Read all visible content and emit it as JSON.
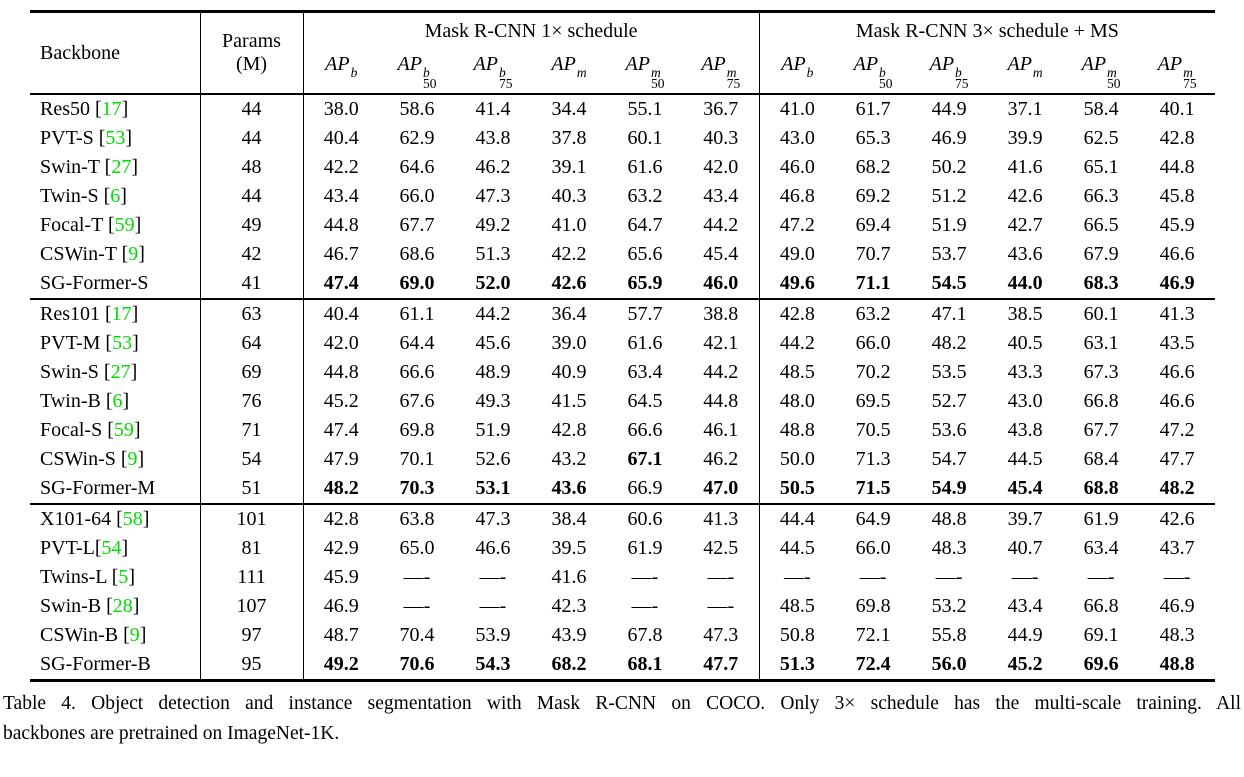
{
  "colors": {
    "citation": "#00dd00"
  },
  "table": {
    "columns": {
      "backbone": "Backbone",
      "params_line1": "Params",
      "params_line2": "(M)",
      "section1": "Mask R-CNN 1× schedule",
      "section2": "Mask R-CNN 3× schedule + MS"
    },
    "metric_headers": [
      {
        "base": "AP",
        "sup": "b",
        "sub": ""
      },
      {
        "base": "AP",
        "sup": "b",
        "sub": "50"
      },
      {
        "base": "AP",
        "sup": "b",
        "sub": "75"
      },
      {
        "base": "AP",
        "sup": "m",
        "sub": ""
      },
      {
        "base": "AP",
        "sup": "m",
        "sub": "50"
      },
      {
        "base": "AP",
        "sup": "m",
        "sub": "75"
      }
    ],
    "groups": [
      {
        "rows": [
          {
            "name": "Res50",
            "cite": "17",
            "cite_space": true,
            "params": "44",
            "values": [
              "38.0",
              "58.6",
              "41.4",
              "34.4",
              "55.1",
              "36.7",
              "41.0",
              "61.7",
              "44.9",
              "37.1",
              "58.4",
              "40.1"
            ],
            "bold": []
          },
          {
            "name": "PVT-S",
            "cite": "53",
            "cite_space": true,
            "params": "44",
            "values": [
              "40.4",
              "62.9",
              "43.8",
              "37.8",
              "60.1",
              "40.3",
              "43.0",
              "65.3",
              "46.9",
              "39.9",
              "62.5",
              "42.8"
            ],
            "bold": []
          },
          {
            "name": "Swin-T",
            "cite": "27",
            "cite_space": true,
            "params": "48",
            "values": [
              "42.2",
              "64.6",
              "46.2",
              "39.1",
              "61.6",
              "42.0",
              "46.0",
              "68.2",
              "50.2",
              "41.6",
              "65.1",
              "44.8"
            ],
            "bold": []
          },
          {
            "name": "Twin-S",
            "cite": "6",
            "cite_space": true,
            "params": "44",
            "values": [
              "43.4",
              "66.0",
              "47.3",
              "40.3",
              "63.2",
              "43.4",
              "46.8",
              "69.2",
              "51.2",
              "42.6",
              "66.3",
              "45.8"
            ],
            "bold": []
          },
          {
            "name": "Focal-T",
            "cite": "59",
            "cite_space": true,
            "params": "49",
            "values": [
              "44.8",
              "67.7",
              "49.2",
              "41.0",
              "64.7",
              "44.2",
              "47.2",
              "69.4",
              "51.9",
              "42.7",
              "66.5",
              "45.9"
            ],
            "bold": []
          },
          {
            "name": "CSWin-T",
            "cite": "9",
            "cite_space": true,
            "params": "42",
            "values": [
              "46.7",
              "68.6",
              "51.3",
              "42.2",
              "65.6",
              "45.4",
              "49.0",
              "70.7",
              "53.7",
              "43.6",
              "67.9",
              "46.6"
            ],
            "bold": []
          },
          {
            "name": "SG-Former-S",
            "cite": null,
            "cite_space": false,
            "params": "41",
            "values": [
              "47.4",
              "69.0",
              "52.0",
              "42.6",
              "65.9",
              "46.0",
              "49.6",
              "71.1",
              "54.5",
              "44.0",
              "68.3",
              "46.9"
            ],
            "bold": [
              0,
              1,
              2,
              3,
              4,
              5,
              6,
              7,
              8,
              9,
              10,
              11
            ]
          }
        ]
      },
      {
        "rows": [
          {
            "name": "Res101",
            "cite": "17",
            "cite_space": true,
            "params": "63",
            "values": [
              "40.4",
              "61.1",
              "44.2",
              "36.4",
              "57.7",
              "38.8",
              "42.8",
              "63.2",
              "47.1",
              "38.5",
              "60.1",
              "41.3"
            ],
            "bold": []
          },
          {
            "name": "PVT-M",
            "cite": "53",
            "cite_space": true,
            "params": "64",
            "values": [
              "42.0",
              "64.4",
              "45.6",
              "39.0",
              "61.6",
              "42.1",
              "44.2",
              "66.0",
              "48.2",
              "40.5",
              "63.1",
              "43.5"
            ],
            "bold": []
          },
          {
            "name": "Swin-S",
            "cite": "27",
            "cite_space": true,
            "params": "69",
            "values": [
              "44.8",
              "66.6",
              "48.9",
              "40.9",
              "63.4",
              "44.2",
              "48.5",
              "70.2",
              "53.5",
              "43.3",
              "67.3",
              "46.6"
            ],
            "bold": []
          },
          {
            "name": "Twin-B",
            "cite": "6",
            "cite_space": true,
            "params": "76",
            "values": [
              "45.2",
              "67.6",
              "49.3",
              "41.5",
              "64.5",
              "44.8",
              "48.0",
              "69.5",
              "52.7",
              "43.0",
              "66.8",
              "46.6"
            ],
            "bold": []
          },
          {
            "name": "Focal-S",
            "cite": "59",
            "cite_space": true,
            "params": "71",
            "values": [
              "47.4",
              "69.8",
              "51.9",
              "42.8",
              "66.6",
              "46.1",
              "48.8",
              "70.5",
              "53.6",
              "43.8",
              "67.7",
              "47.2"
            ],
            "bold": []
          },
          {
            "name": "CSWin-S",
            "cite": "9",
            "cite_space": true,
            "params": "54",
            "values": [
              "47.9",
              "70.1",
              "52.6",
              "43.2",
              "67.1",
              "46.2",
              "50.0",
              "71.3",
              "54.7",
              "44.5",
              "68.4",
              "47.7"
            ],
            "bold": [
              4
            ]
          },
          {
            "name": "SG-Former-M",
            "cite": null,
            "cite_space": false,
            "params": "51",
            "values": [
              "48.2",
              "70.3",
              "53.1",
              "43.6",
              "66.9",
              "47.0",
              "50.5",
              "71.5",
              "54.9",
              "45.4",
              "68.8",
              "48.2"
            ],
            "bold": [
              0,
              1,
              2,
              3,
              5,
              6,
              7,
              8,
              9,
              10,
              11
            ]
          }
        ]
      },
      {
        "rows": [
          {
            "name": "X101-64",
            "cite": "58",
            "cite_space": true,
            "params": "101",
            "values": [
              "42.8",
              "63.8",
              "47.3",
              "38.4",
              "60.6",
              "41.3",
              "44.4",
              "64.9",
              "48.8",
              "39.7",
              "61.9",
              "42.6"
            ],
            "bold": []
          },
          {
            "name": "PVT-L",
            "cite": "54",
            "cite_space": false,
            "params": "81",
            "values": [
              "42.9",
              "65.0",
              "46.6",
              "39.5",
              "61.9",
              "42.5",
              "44.5",
              "66.0",
              "48.3",
              "40.7",
              "63.4",
              "43.7"
            ],
            "bold": []
          },
          {
            "name": "Twins-L",
            "cite": "5",
            "cite_space": true,
            "params": "111",
            "values": [
              "45.9",
              "—-",
              "—-",
              "41.6",
              "—-",
              "—-",
              "—-",
              "—-",
              "—-",
              "—-",
              "—-",
              "—-"
            ],
            "bold": []
          },
          {
            "name": "Swin-B",
            "cite": "28",
            "cite_space": true,
            "params": "107",
            "values": [
              "46.9",
              "—-",
              "—-",
              "42.3",
              "—-",
              "—-",
              "48.5",
              "69.8",
              "53.2",
              "43.4",
              "66.8",
              "46.9"
            ],
            "bold": []
          },
          {
            "name": "CSWin-B",
            "cite": "9",
            "cite_space": true,
            "params": "97",
            "values": [
              "48.7",
              "70.4",
              "53.9",
              "43.9",
              "67.8",
              "47.3",
              "50.8",
              "72.1",
              "55.8",
              "44.9",
              "69.1",
              "48.3"
            ],
            "bold": []
          },
          {
            "name": "SG-Former-B",
            "cite": null,
            "cite_space": false,
            "params": "95",
            "values": [
              "49.2",
              "70.6",
              "54.3",
              "68.2",
              "68.1",
              "47.7",
              "51.3",
              "72.4",
              "56.0",
              "45.2",
              "69.6",
              "48.8"
            ],
            "bold": [
              0,
              1,
              2,
              3,
              4,
              5,
              6,
              7,
              8,
              9,
              10,
              11
            ]
          }
        ]
      }
    ]
  },
  "caption": {
    "line1": "Table 4. Object detection and instance segmentation with Mask R-CNN on COCO. Only 3× schedule has the multi-scale training. All",
    "line2": "backbones are pretrained on ImageNet-1K."
  }
}
